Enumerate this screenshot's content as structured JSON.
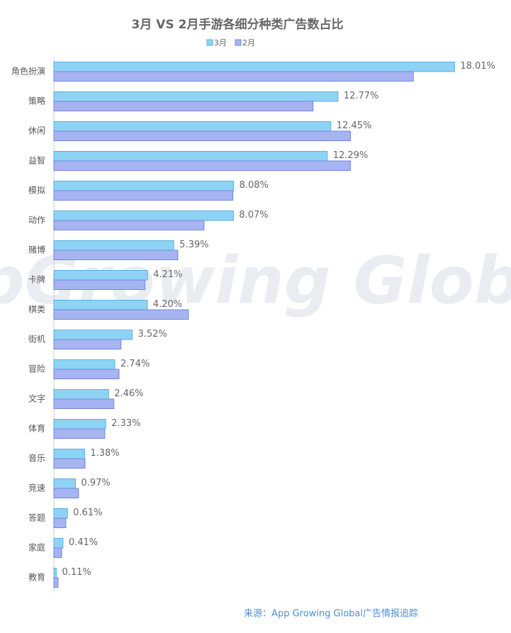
{
  "chart_data": {
    "type": "bar",
    "orientation": "horizontal",
    "title": "3月 VS 2月手游各细分种类广告数占比",
    "categories": [
      "角色扮演",
      "策略",
      "休闲",
      "益智",
      "模拟",
      "动作",
      "赌博",
      "卡牌",
      "棋类",
      "街机",
      "冒险",
      "文字",
      "体育",
      "音乐",
      "竞速",
      "答题",
      "家庭",
      "教育"
    ],
    "series": [
      {
        "name": "3月",
        "color": "#8fd3f4",
        "values": [
          18.01,
          12.77,
          12.45,
          12.29,
          8.08,
          8.07,
          5.39,
          4.21,
          4.2,
          3.52,
          2.74,
          2.46,
          2.33,
          1.38,
          0.97,
          0.61,
          0.41,
          0.11
        ],
        "value_labels": [
          "18.01%",
          "12.77%",
          "12.45%",
          "12.29%",
          "8.08%",
          "8.07%",
          "5.39%",
          "4.21%",
          "4.20%",
          "3.52%",
          "2.74%",
          "2.46%",
          "2.33%",
          "1.38%",
          "0.97%",
          "0.61%",
          "0.41%",
          "0.11%"
        ]
      },
      {
        "name": "2月",
        "color": "#a7b4f2",
        "values": [
          16.16,
          11.65,
          13.33,
          13.33,
          8.05,
          6.75,
          5.57,
          4.1,
          6.05,
          3.02,
          2.93,
          2.7,
          2.29,
          1.4,
          1.11,
          0.54,
          0.35,
          0.19
        ]
      }
    ],
    "xlim": [
      0,
      18
    ],
    "legend": "top",
    "watermark": "AppGrowing Global",
    "source": "来源：App Growing Global广告情报追踪"
  }
}
